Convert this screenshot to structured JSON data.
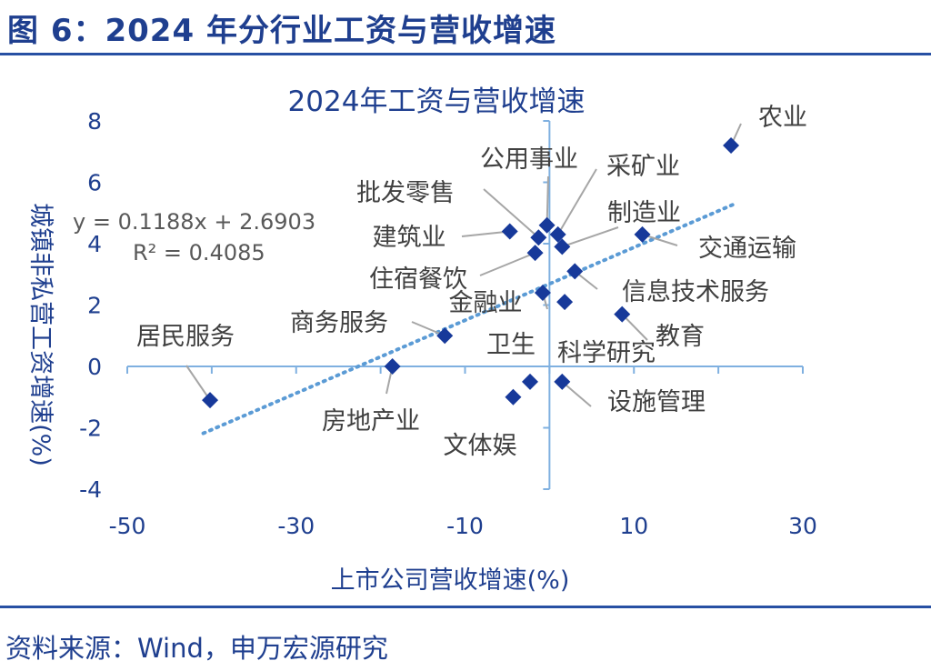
{
  "figure": {
    "title": "图 6：2024 年分行业工资与营收增速",
    "source": "资料来源：Wind，申万宏源研究"
  },
  "colors": {
    "accent": "#1f3f8f",
    "marker": "#17399a",
    "axis": "#7fb0e0",
    "trend": "#5b9bd5",
    "leader": "#a6a6a6"
  },
  "chart_data": {
    "type": "scatter",
    "title": "2024年工资与营收增速",
    "xlabel": "上市公司营收增速(%)",
    "ylabel": "城镇非私营工资增速(%)",
    "xlim": [
      -50,
      30
    ],
    "ylim": [
      -4,
      8
    ],
    "xticks": [
      "-50",
      "-30",
      "-10",
      "10",
      "30"
    ],
    "yticks": [
      "-4",
      "-2",
      "0",
      "2",
      "4",
      "6",
      "8"
    ],
    "grid": false,
    "trendline": {
      "equation": "y = 0.1188x + 2.6903",
      "r2": "R² = 0.4085",
      "slope": 0.1188,
      "intercept": 2.6903,
      "x_range": [
        -41,
        22
      ]
    },
    "points": [
      {
        "name": "农业",
        "x": 21.5,
        "y": 7.2
      },
      {
        "name": "公用事业",
        "x": -0.3,
        "y": 4.6
      },
      {
        "name": "采矿业",
        "x": 1.0,
        "y": 4.3
      },
      {
        "name": "批发零售",
        "x": -1.3,
        "y": 4.2
      },
      {
        "name": "建筑业",
        "x": -4.7,
        "y": 4.4
      },
      {
        "name": "制造业",
        "x": 1.5,
        "y": 3.9
      },
      {
        "name": "交通运输",
        "x": 11.0,
        "y": 4.3
      },
      {
        "name": "住宿餐饮",
        "x": -1.7,
        "y": 3.7
      },
      {
        "name": "信息技术服务",
        "x": 3.0,
        "y": 3.1
      },
      {
        "name": "金融业",
        "x": -0.8,
        "y": 2.4
      },
      {
        "name": "科学研究",
        "x": 1.8,
        "y": 2.1
      },
      {
        "name": "教育",
        "x": 8.6,
        "y": 1.7
      },
      {
        "name": "商务服务",
        "x": -12.4,
        "y": 1.0
      },
      {
        "name": "居民服务",
        "x": -40.2,
        "y": -1.1
      },
      {
        "name": "房地产业",
        "x": -18.6,
        "y": 0.0
      },
      {
        "name": "卫生",
        "x": -2.3,
        "y": -0.5
      },
      {
        "name": "设施管理",
        "x": 1.5,
        "y": -0.5
      },
      {
        "name": "文体娱",
        "x": -4.3,
        "y": -1.0
      }
    ]
  }
}
